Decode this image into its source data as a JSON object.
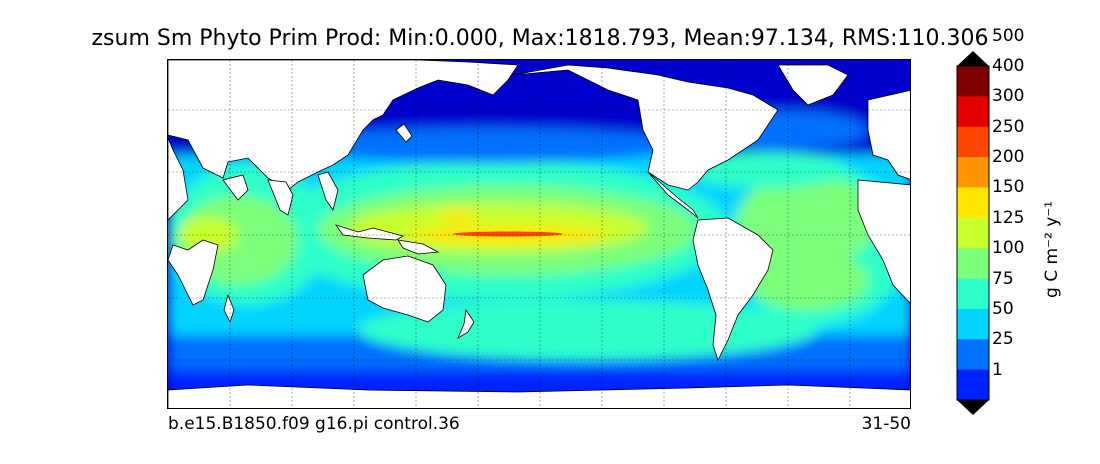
{
  "title": "zsum Sm Phyto Prim Prod: Min:0.000, Max:1818.793, Mean:97.134, RMS:110.306",
  "case_label": "b.e15.B1850.f09 g16.pi control.36",
  "period_label": "31-50",
  "colorbar": {
    "unit": "g C m⁻² y⁻¹",
    "levels": [
      "1",
      "25",
      "50",
      "75",
      "100",
      "125",
      "150",
      "200",
      "250",
      "300",
      "400",
      "500"
    ],
    "colors": [
      "#00007f",
      "#0000cc",
      "#0022ff",
      "#0070ff",
      "#00d4ff",
      "#2effc9",
      "#7cff7a",
      "#c8ff2e",
      "#ffe600",
      "#ff9400",
      "#ff4600",
      "#e30000",
      "#7f0000"
    ]
  },
  "map_colors": {
    "land": "#ffffff",
    "coastline": "#000000",
    "gridline": "#000000"
  }
}
